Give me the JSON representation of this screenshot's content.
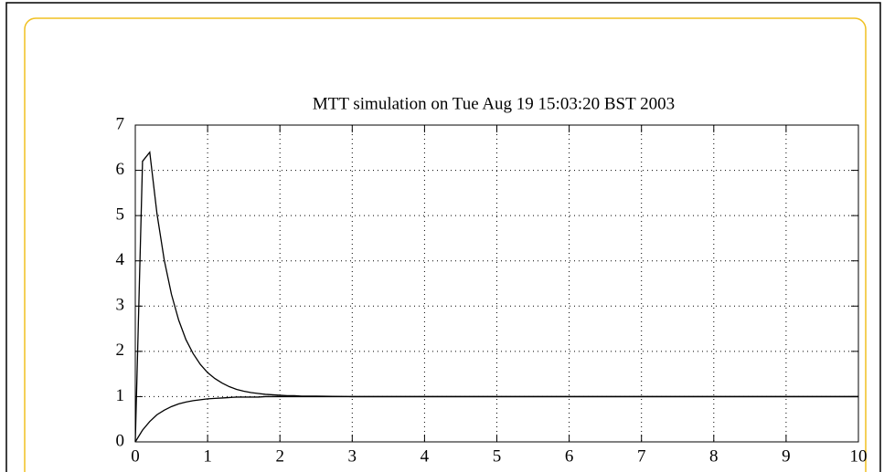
{
  "chart_data": {
    "type": "line",
    "title": "MTT simulation on Tue Aug 19 15:03:20 BST 2003",
    "x": [
      0,
      0.1,
      0.2,
      0.3,
      0.4,
      0.5,
      0.6,
      0.7,
      0.8,
      0.9,
      1.0,
      1.1,
      1.2,
      1.3,
      1.4,
      1.5,
      1.6,
      1.7,
      1.8,
      1.9,
      2.0,
      2.1,
      2.2,
      2.3,
      2.4,
      2.5,
      3,
      4,
      5,
      6,
      7,
      8,
      9,
      10
    ],
    "series": [
      {
        "color": "#000000",
        "values": [
          0,
          6.2,
          6.4,
          5.04,
          4.02,
          3.26,
          2.69,
          2.26,
          1.95,
          1.71,
          1.53,
          1.4,
          1.3,
          1.22,
          1.16,
          1.12,
          1.09,
          1.07,
          1.05,
          1.04,
          1.03,
          1.02,
          1.02,
          1.01,
          1.01,
          1.01,
          1,
          1,
          1,
          1,
          1,
          1,
          1,
          1
        ]
      },
      {
        "color": "#000000",
        "values": [
          0,
          0.26,
          0.45,
          0.6,
          0.7,
          0.78,
          0.84,
          0.88,
          0.91,
          0.93,
          0.95,
          0.96,
          0.97,
          0.98,
          0.99,
          0.99,
          0.99,
          0.99,
          1,
          1,
          1,
          1,
          1,
          1,
          1,
          1,
          1,
          1,
          1,
          1,
          1,
          1,
          1,
          1
        ]
      }
    ],
    "xlim": [
      0,
      10
    ],
    "xticks": [
      0,
      1,
      2,
      3,
      4,
      5,
      6,
      7,
      8,
      9,
      10
    ],
    "ylim": [
      0,
      7
    ],
    "yticks": [
      0,
      1,
      2,
      3,
      4,
      5,
      6,
      7
    ],
    "grid": true
  }
}
